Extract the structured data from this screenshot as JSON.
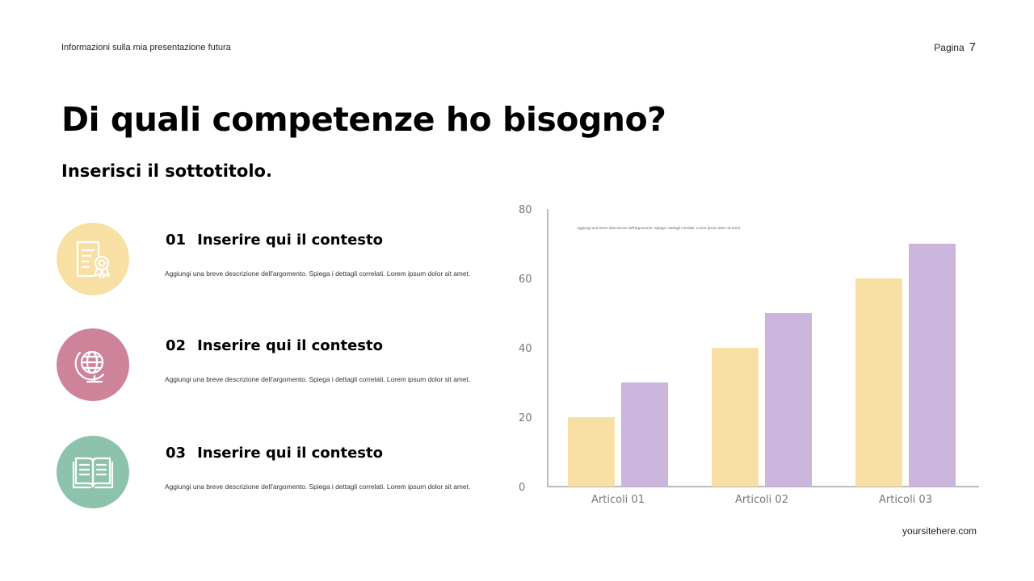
{
  "header": {
    "left_text": "Informazioni sulla mia presentazione futura",
    "page_label": "Pagina",
    "page_number": "7"
  },
  "title": "Di quali competenze ho bisogno?",
  "subtitle": "Inserisci il sottotitolo.",
  "items": [
    {
      "number": "01",
      "heading": "Inserire qui il contesto",
      "description": "Aggiungi una breve descrizione dell'argomento. Spiega i dettagli correlati. Lorem ipsum dolor sit amet.",
      "icon": "certificate-icon",
      "color": "#F8DFA3"
    },
    {
      "number": "02",
      "heading": "Inserire qui il contesto",
      "description": "Aggiungi una breve descrizione dell'argomento. Spiega i dettagli correlati. Lorem ipsum dolor sit amet.",
      "icon": "globe-icon",
      "color": "#CD8399"
    },
    {
      "number": "03",
      "heading": "Inserire qui il contesto",
      "description": "Aggiungi una breve descrizione dell'argomento. Spiega i dettagli correlati. Lorem ipsum dolor sit amet.",
      "icon": "open-book-icon",
      "color": "#8DC2AD"
    }
  ],
  "chart_data": {
    "type": "bar",
    "categories": [
      "Articoli 01",
      "Articoli 02",
      "Articoli 03"
    ],
    "series": [
      {
        "values": [
          20,
          40,
          60
        ],
        "color": "#F8DFA3"
      },
      {
        "values": [
          30,
          50,
          70
        ],
        "color": "#CBB5DC"
      }
    ],
    "yticks": [
      0,
      20,
      40,
      60,
      80
    ],
    "ylim": [
      0,
      80
    ],
    "annotation": "Aggiungi una breve descrizione dell'argomento. Spiega i dettagli correlati. Lorem ipsum dolor sit amet.",
    "grid": false
  },
  "footer": {
    "site": "yoursitehere.com"
  }
}
